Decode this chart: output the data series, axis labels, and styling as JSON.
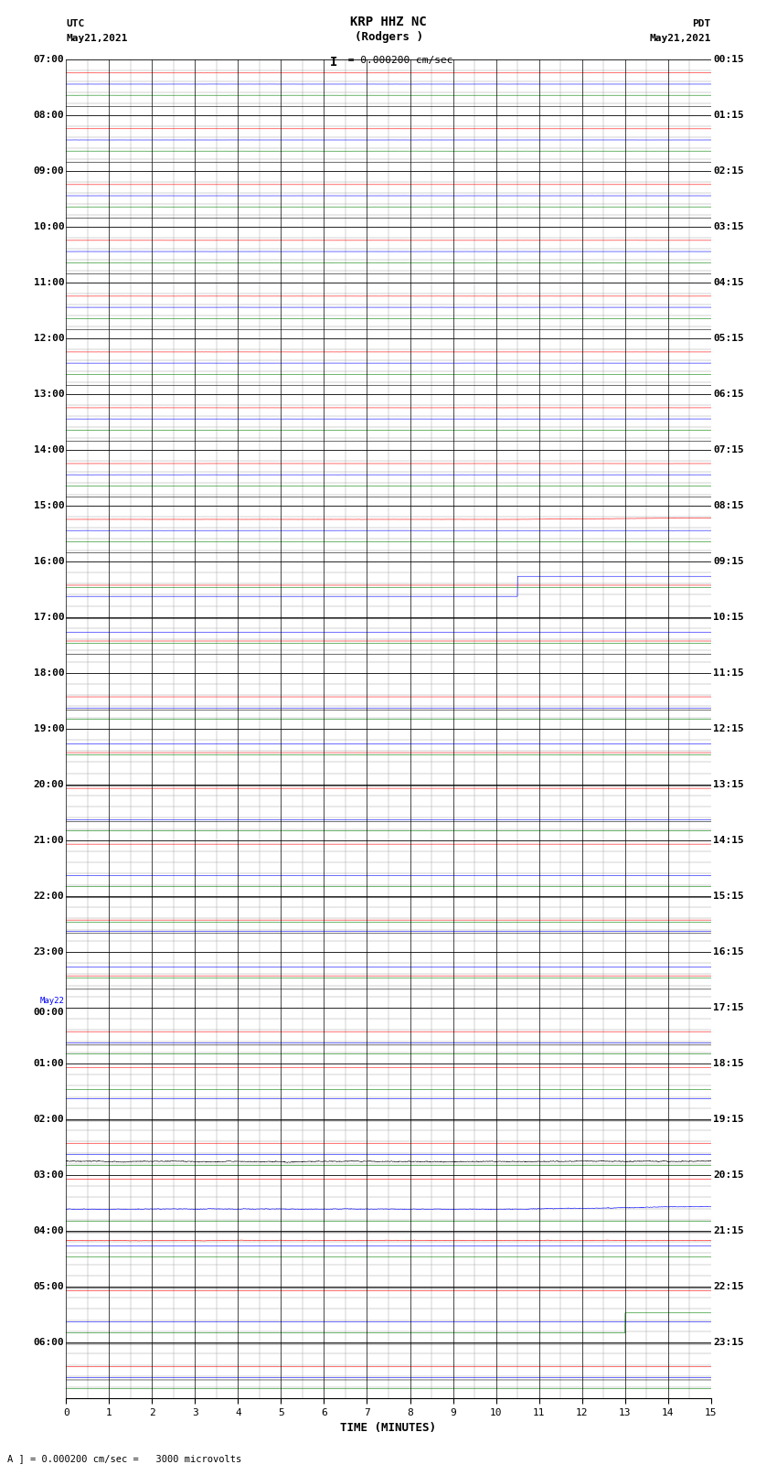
{
  "title_line1": "KRP HHZ NC",
  "title_line2": "(Rodgers )",
  "title_line3": "I = 0.000200 cm/sec",
  "left_label_top": "UTC",
  "left_label_date": "May21,2021",
  "right_label_top": "PDT",
  "right_label_date": "May21,2021",
  "bottom_label": "TIME (MINUTES)",
  "bottom_note": "A ] = 0.000200 cm/sec =   3000 microvolts",
  "utc_times": [
    "07:00",
    "08:00",
    "09:00",
    "10:00",
    "11:00",
    "12:00",
    "13:00",
    "14:00",
    "15:00",
    "16:00",
    "17:00",
    "18:00",
    "19:00",
    "20:00",
    "21:00",
    "22:00",
    "23:00",
    "May22\n00:00",
    "01:00",
    "02:00",
    "03:00",
    "04:00",
    "05:00",
    "06:00"
  ],
  "pdt_times": [
    "00:15",
    "01:15",
    "02:15",
    "03:15",
    "04:15",
    "05:15",
    "06:15",
    "07:15",
    "08:15",
    "09:15",
    "10:15",
    "11:15",
    "12:15",
    "13:15",
    "14:15",
    "15:15",
    "16:15",
    "17:15",
    "18:15",
    "19:15",
    "20:15",
    "21:15",
    "22:15",
    "23:15"
  ],
  "n_rows": 24,
  "n_minutes": 15,
  "colors": [
    "red",
    "blue",
    "green",
    "black"
  ],
  "background_color": "white",
  "grid_major_color": "#000000",
  "grid_minor_color": "#888888",
  "figsize": [
    8.5,
    16.13
  ],
  "dpi": 100
}
